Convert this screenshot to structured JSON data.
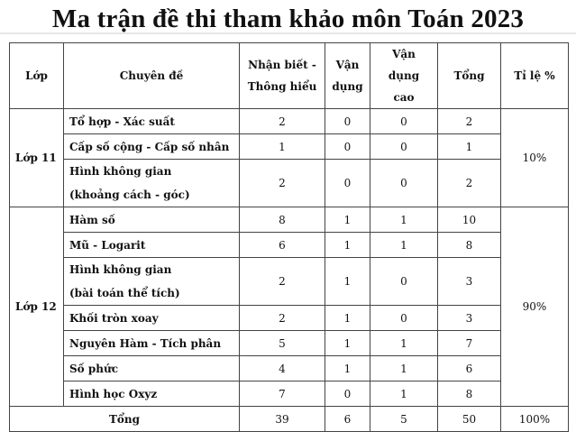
{
  "title": "Ma trận đề thi tham khảo môn Toán 2023",
  "table": {
    "headers": {
      "grade": "Lớp",
      "topic": "Chuyên đề",
      "recognize_1": "Nhận biết -",
      "recognize_2": "Thông hiểu",
      "apply_1": "Vận",
      "apply_2": "dụng",
      "apply_high_1": "Vận dụng",
      "apply_high_2": "cao",
      "total": "Tổng",
      "ratio": "Tỉ lệ %"
    },
    "groups": [
      {
        "grade": "Lớp 11",
        "ratio": "10%",
        "rows": [
          {
            "topic": "Tổ hợp - Xác suất",
            "topic2": "",
            "nb": "2",
            "vd": "0",
            "vdc": "0",
            "total": "2"
          },
          {
            "topic": "Cấp số cộng - Cấp số nhân",
            "topic2": "",
            "nb": "1",
            "vd": "0",
            "vdc": "0",
            "total": "1"
          },
          {
            "topic": "Hình không gian",
            "topic2": "(khoảng cách - góc)",
            "nb": "2",
            "vd": "0",
            "vdc": "0",
            "total": "2"
          }
        ]
      },
      {
        "grade": "Lớp 12",
        "ratio": "90%",
        "rows": [
          {
            "topic": "Hàm số",
            "topic2": "",
            "nb": "8",
            "vd": "1",
            "vdc": "1",
            "total": "10"
          },
          {
            "topic": "Mũ - Logarit",
            "topic2": "",
            "nb": "6",
            "vd": "1",
            "vdc": "1",
            "total": "8"
          },
          {
            "topic": "Hình không gian",
            "topic2": "(bài toán thể tích)",
            "nb": "2",
            "vd": "1",
            "vdc": "0",
            "total": "3"
          },
          {
            "topic": "Khối tròn xoay",
            "topic2": "",
            "nb": "2",
            "vd": "1",
            "vdc": "0",
            "total": "3"
          },
          {
            "topic": "Nguyên Hàm - Tích phân",
            "topic2": "",
            "nb": "5",
            "vd": "1",
            "vdc": "1",
            "total": "7"
          },
          {
            "topic": "Số phức",
            "topic2": "",
            "nb": "4",
            "vd": "1",
            "vdc": "1",
            "total": "6"
          },
          {
            "topic": "Hình học Oxyz",
            "topic2": "",
            "nb": "7",
            "vd": "0",
            "vdc": "1",
            "total": "8"
          }
        ]
      }
    ],
    "footer": {
      "label": "Tổng",
      "nb": "39",
      "vd": "6",
      "vdc": "5",
      "total": "50",
      "ratio": "100%"
    }
  }
}
